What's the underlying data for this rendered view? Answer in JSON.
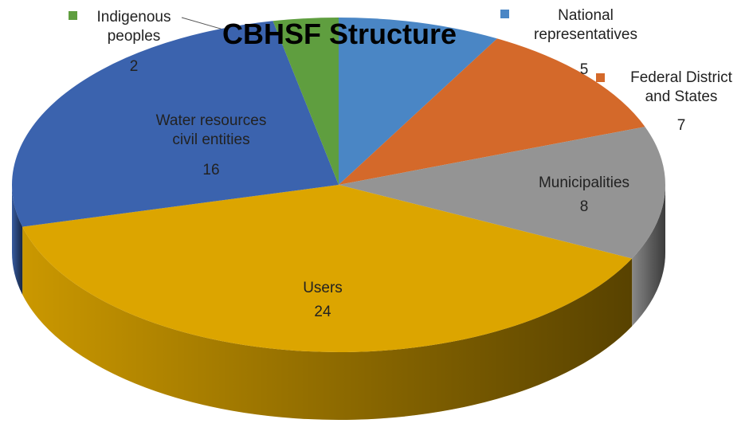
{
  "chart_data": {
    "type": "pie",
    "title": "CBHSF Structure",
    "categories": [
      "National representatives",
      "Federal District and States",
      "Municipalities",
      "Users",
      "Water resources civil entities",
      "Indigenous peoples"
    ],
    "values": [
      5,
      7,
      8,
      24,
      16,
      2
    ],
    "colors": [
      "#4a86c5",
      "#d4692a",
      "#949494",
      "#dca500",
      "#3b63ae",
      "#5f9e3f"
    ]
  }
}
